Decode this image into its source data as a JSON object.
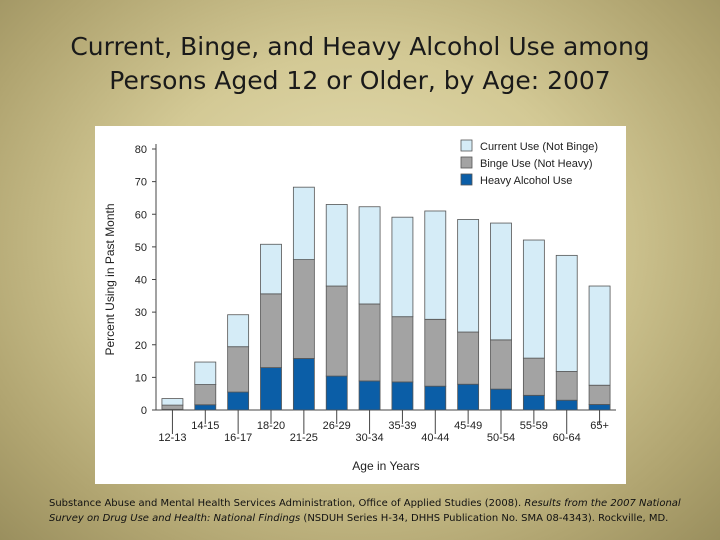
{
  "slide": {
    "title_line1": "Current, Binge, and Heavy Alcohol Use among",
    "title_line2": "Persons Aged 12 or Older, by Age: 2007"
  },
  "source": {
    "text_before": "Substance Abuse and Mental Health Services Administration, Office of Applied Studies (2008). ",
    "italic": "Results from the 2007 National Survey on Drug Use and Health: National Findings",
    "text_after": " (NSDUH Series H-34, DHHS Publication No. SMA 08-4343). Rockville, MD."
  },
  "colors": {
    "current": "#d5ecf7",
    "binge": "#a3a3a3",
    "heavy": "#0b5ea7",
    "stroke": "#555555"
  },
  "chart_data": {
    "type": "bar",
    "stacked": true,
    "title": "",
    "xlabel": "Age in Years",
    "ylabel": "Percent Using in Past Month",
    "ylim": [
      0,
      80
    ],
    "yticks": [
      0,
      10,
      20,
      30,
      40,
      50,
      60,
      70,
      80
    ],
    "categories": [
      "12-13",
      "14-15",
      "16-17",
      "18-20",
      "21-25",
      "26-29",
      "30-34",
      "35-39",
      "40-44",
      "45-49",
      "50-54",
      "55-59",
      "60-64",
      "65+"
    ],
    "series": [
      {
        "name": "Heavy Alcohol Use",
        "values": [
          0.2,
          1.6,
          5.5,
          13.0,
          15.8,
          10.4,
          8.9,
          8.6,
          7.3,
          7.9,
          6.4,
          4.5,
          3.0,
          1.7
        ]
      },
      {
        "name": "Binge Use (Not Heavy)",
        "values": [
          1.3,
          6.2,
          13.9,
          22.6,
          30.3,
          27.6,
          23.6,
          20.0,
          20.5,
          16.0,
          15.1,
          11.4,
          8.8,
          5.9
        ]
      },
      {
        "name": "Current Use (Not Binge)",
        "values": [
          2.0,
          6.9,
          9.8,
          15.2,
          22.2,
          25.0,
          29.8,
          30.5,
          33.2,
          34.5,
          35.8,
          36.2,
          35.6,
          30.4
        ]
      }
    ],
    "legend": [
      "Current Use (Not Binge)",
      "Binge Use (Not Heavy)",
      "Heavy Alcohol Use"
    ],
    "legend_position": "top-right"
  }
}
